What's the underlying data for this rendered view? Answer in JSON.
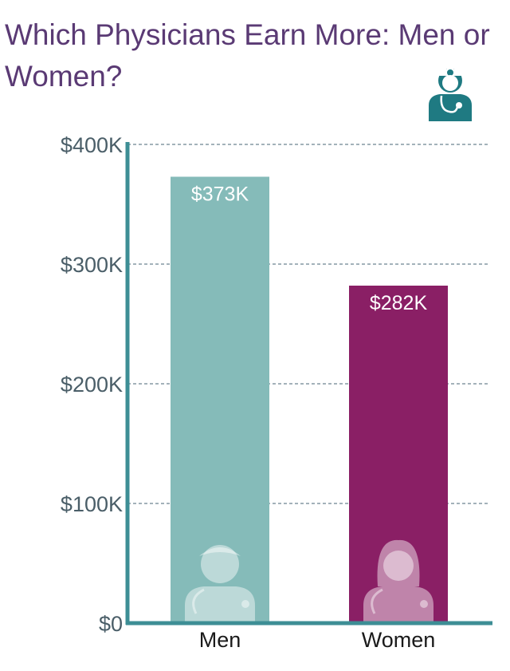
{
  "chart_data": {
    "type": "bar",
    "title": "Which Physicians Earn More: Men or Women?",
    "categories": [
      "Men",
      "Women"
    ],
    "values": [
      373,
      282
    ],
    "data_labels": [
      "$373K",
      "$282K"
    ],
    "yticks": [
      0,
      100,
      200,
      300,
      400
    ],
    "ytick_labels": [
      "$0",
      "$100K",
      "$200K",
      "$300K",
      "$400K"
    ],
    "ylim": [
      0,
      400
    ],
    "grid": true,
    "bar_colors": [
      "#85bbb9",
      "#8a1f65"
    ],
    "axis_color": "#3d8e95",
    "icons": [
      "male-doctor-icon",
      "female-doctor-icon"
    ]
  },
  "header_icon": "doctor-icon",
  "header_icon_color": "#1f7a82"
}
